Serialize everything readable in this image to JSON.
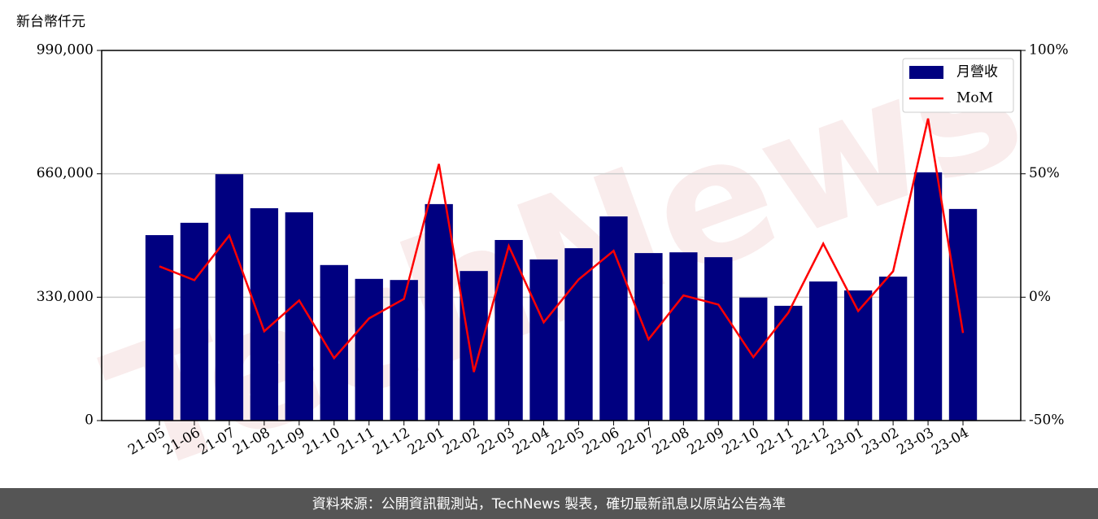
{
  "chart_data": {
    "type": "bar",
    "y_label": "新台幣仟元",
    "watermark": "TechNews",
    "footer": "資料來源：公開資訊觀測站，TechNews 製表，確切最新訊息以原站公告為準",
    "categories": [
      "21-05",
      "21-06",
      "21-07",
      "21-08",
      "21-09",
      "21-10",
      "21-11",
      "21-12",
      "22-01",
      "22-02",
      "22-03",
      "22-04",
      "22-05",
      "22-06",
      "22-07",
      "22-08",
      "22-09",
      "22-10",
      "22-11",
      "22-12",
      "23-01",
      "23-02",
      "23-03",
      "23-04"
    ],
    "series": [
      {
        "name": "月營收",
        "type": "bar",
        "color": "#000080",
        "values": [
          496000,
          529000,
          659000,
          568000,
          557000,
          416000,
          379000,
          376000,
          579000,
          400000,
          483000,
          431000,
          461000,
          546000,
          448000,
          450000,
          437000,
          329000,
          307000,
          372000,
          348000,
          385000,
          664000,
          566000
        ]
      },
      {
        "name": "MoM",
        "type": "line",
        "color": "#ff0000",
        "axis": "y2",
        "values": [
          12.5,
          6.9,
          25,
          -13.8,
          -1.3,
          -24.7,
          -8.6,
          -0.7,
          54,
          -30.3,
          20.7,
          -10.2,
          7.2,
          18.8,
          -17.1,
          0.7,
          -3,
          -24.3,
          -6.3,
          21.7,
          -5.6,
          10.5,
          72.4,
          -14.5
        ]
      }
    ],
    "ylim": [
      0,
      990000
    ],
    "yticks": [
      0,
      {
        "value": 330000,
        "label": "330,000"
      },
      {
        "value": 660000,
        "label": "660,000"
      },
      {
        "value": 990000,
        "label": "990,000"
      }
    ],
    "y2lim": [
      -50,
      100
    ],
    "y2ticks": [
      {
        "value": -50,
        "label": "-50%"
      },
      {
        "value": 0,
        "label": "0%"
      },
      {
        "value": 50,
        "label": "50%"
      },
      {
        "value": 100,
        "label": "100%"
      }
    ],
    "grid": true,
    "legend": "upper right"
  }
}
